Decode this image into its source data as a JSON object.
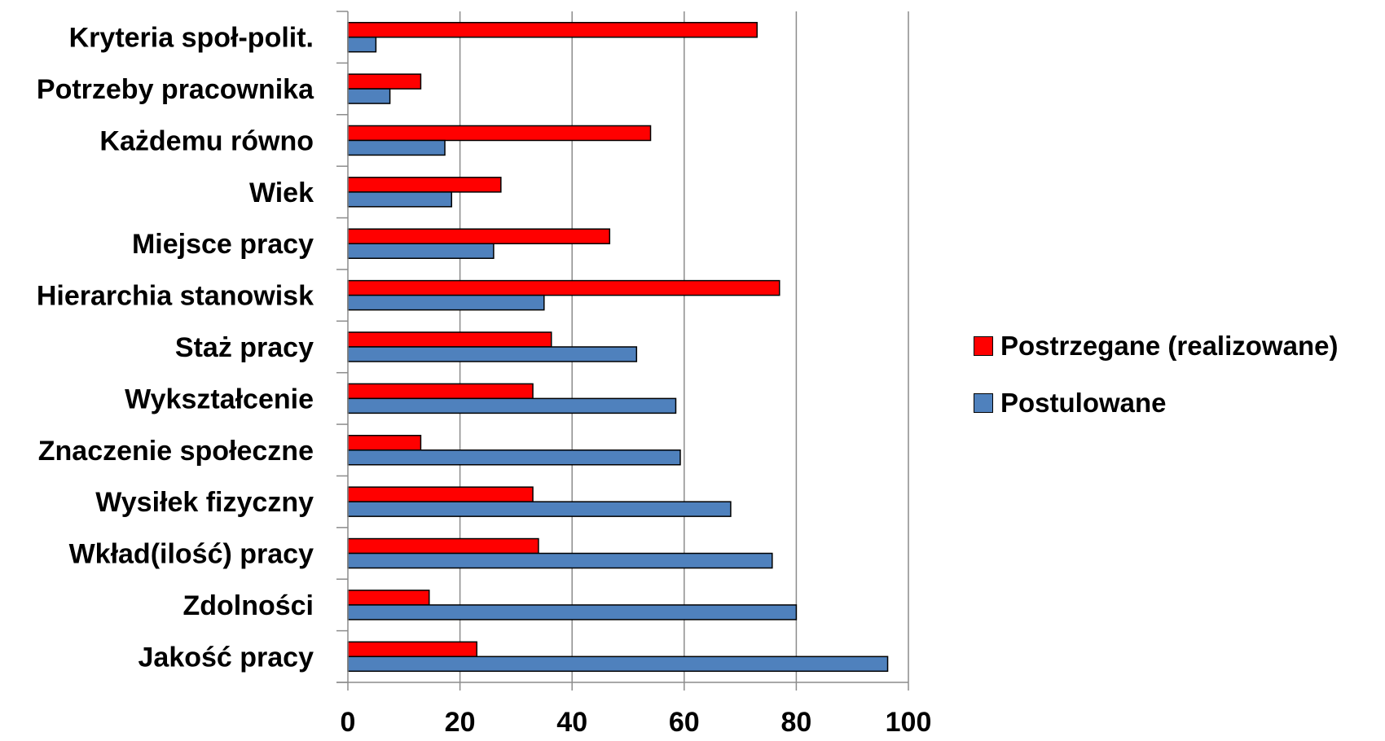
{
  "chart_data": {
    "type": "bar",
    "orientation": "horizontal",
    "categories": [
      "Jakość pracy",
      "Zdolności",
      "Wkład(ilość) pracy",
      "Wysiłek fizyczny",
      "Znaczenie społeczne",
      "Wykształcenie",
      "Staż pracy",
      "Hierarchia stanowisk",
      "Miejsce pracy",
      "Wiek",
      "Każdemu równo",
      "Potrzeby pracownika",
      "Kryteria społ-polit."
    ],
    "series": [
      {
        "name": "Postrzegane (realizowane)",
        "color": "#ff0000",
        "values": [
          23,
          14.5,
          34,
          33,
          13,
          33,
          36.3,
          77,
          46.7,
          27.3,
          54,
          13,
          73
        ]
      },
      {
        "name": "Postulowane",
        "color": "#4f81bd",
        "values": [
          96.3,
          80,
          75.7,
          68.3,
          59.3,
          58.5,
          51.5,
          35,
          26,
          18.5,
          17.3,
          7.5,
          5
        ]
      }
    ],
    "xlim": [
      0,
      100
    ],
    "xticks": [
      "0",
      "20",
      "40",
      "60",
      "80",
      "100"
    ],
    "grid": "vertical",
    "legend_position": "right",
    "title": "",
    "xlabel": "",
    "ylabel": ""
  }
}
